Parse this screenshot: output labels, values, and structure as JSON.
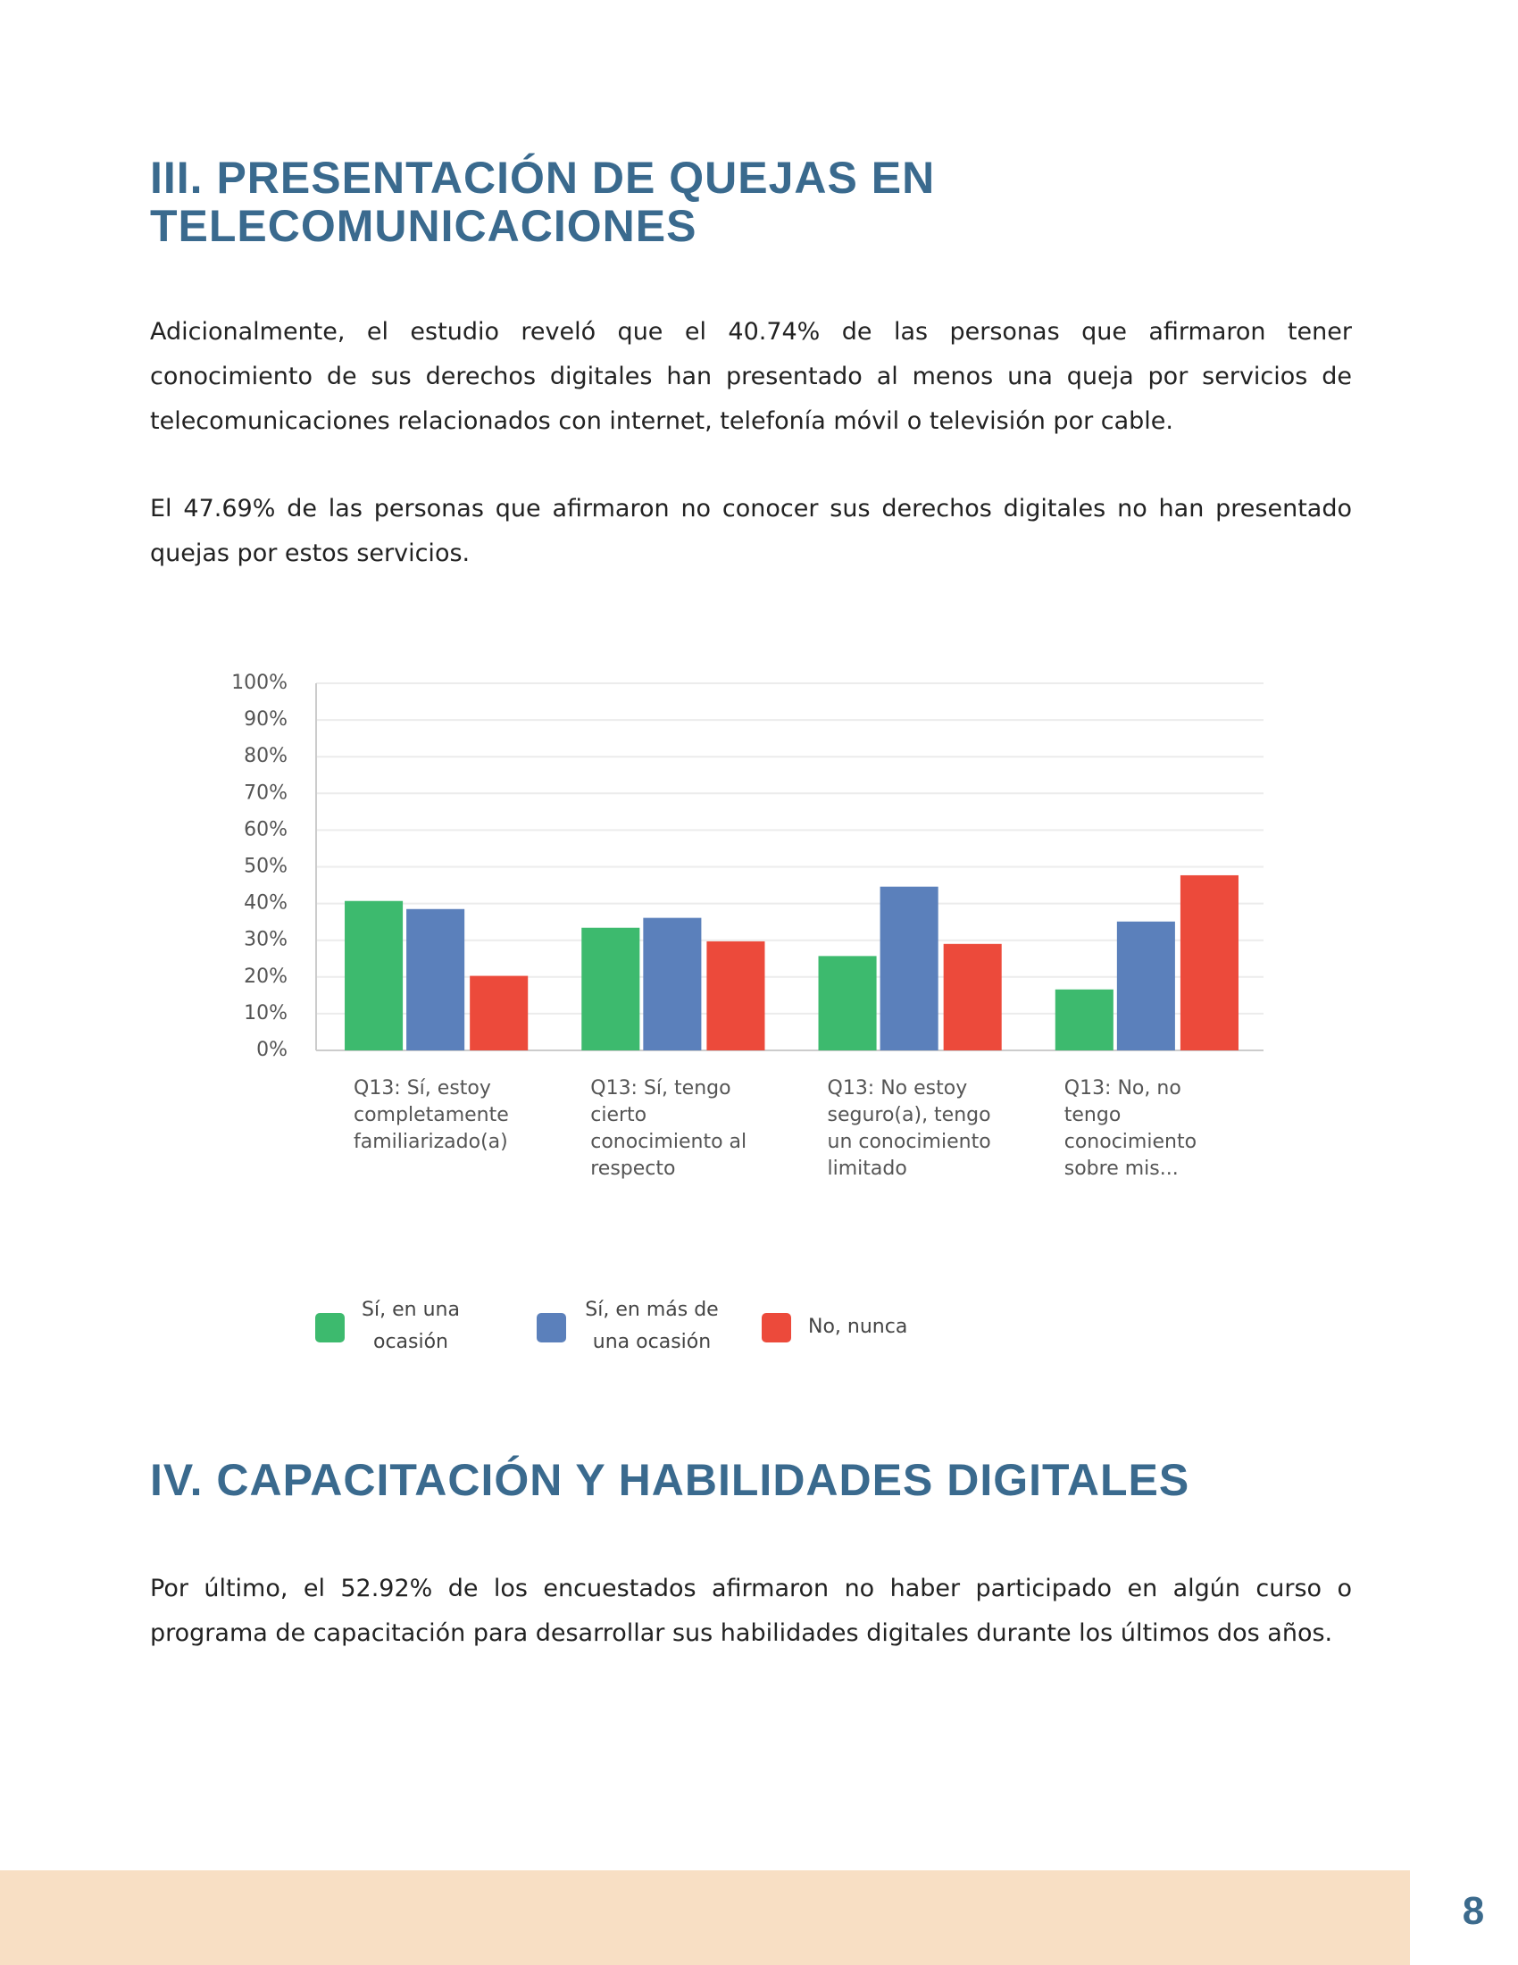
{
  "heading_3": "III. PRESENTACIÓN DE QUEJAS EN TELECOMUNICACIONES",
  "paragraphs_3": [
    "Adicionalmente, el estudio reveló que el 40.74% de las personas que afirmaron tener conocimiento de sus derechos digitales han presentado al menos una queja por servicios de telecomunicaciones relacionados con internet, telefonía móvil o televisión por cable.",
    "El 47.69% de las personas que afirmaron no conocer sus derechos digitales no han presentado quejas por estos servicios."
  ],
  "chart_data": {
    "type": "bar",
    "categories": [
      "Q13: Sí, estoy completamente familiarizado(a)",
      "Q13: Sí, tengo cierto conocimiento al respecto",
      "Q13: No estoy seguro(a), tengo un conocimiento limitado",
      "Q13: No, no tengo conocimiento sobre mis..."
    ],
    "series": [
      {
        "name": "Sí, en una ocasión",
        "color": "#3dba6e",
        "values": [
          40.7,
          33.4,
          25.7,
          16.6
        ]
      },
      {
        "name": "Sí, en más de una ocasión",
        "color": "#5b80bb",
        "values": [
          38.5,
          36.1,
          44.6,
          35.1
        ]
      },
      {
        "name": "No, nunca",
        "color": "#ec4a3b",
        "values": [
          20.3,
          29.7,
          29.0,
          47.7
        ]
      }
    ],
    "ylim": [
      0,
      100
    ],
    "yticks": [
      {
        "value": 0,
        "label": "0%"
      },
      {
        "value": 10,
        "label": "10%"
      },
      {
        "value": 20,
        "label": "20%"
      },
      {
        "value": 30,
        "label": "30%"
      },
      {
        "value": 40,
        "label": "40%"
      },
      {
        "value": 50,
        "label": "50%"
      },
      {
        "value": 60,
        "label": "60%"
      },
      {
        "value": 70,
        "label": "70%"
      },
      {
        "value": 80,
        "label": "80%"
      },
      {
        "value": 90,
        "label": "90%"
      },
      {
        "value": 100,
        "label": "100%"
      }
    ],
    "grid": true,
    "legend": "bottom"
  },
  "heading_4": "IV. CAPACITACIÓN Y HABILIDADES DIGITALES",
  "paragraph_4": "Por último, el 52.92% de los encuestados afirmaron no haber participado en algún curso o programa de capacitación para desarrollar sus habilidades digitales durante los últimos dos años.",
  "page_number": "8"
}
